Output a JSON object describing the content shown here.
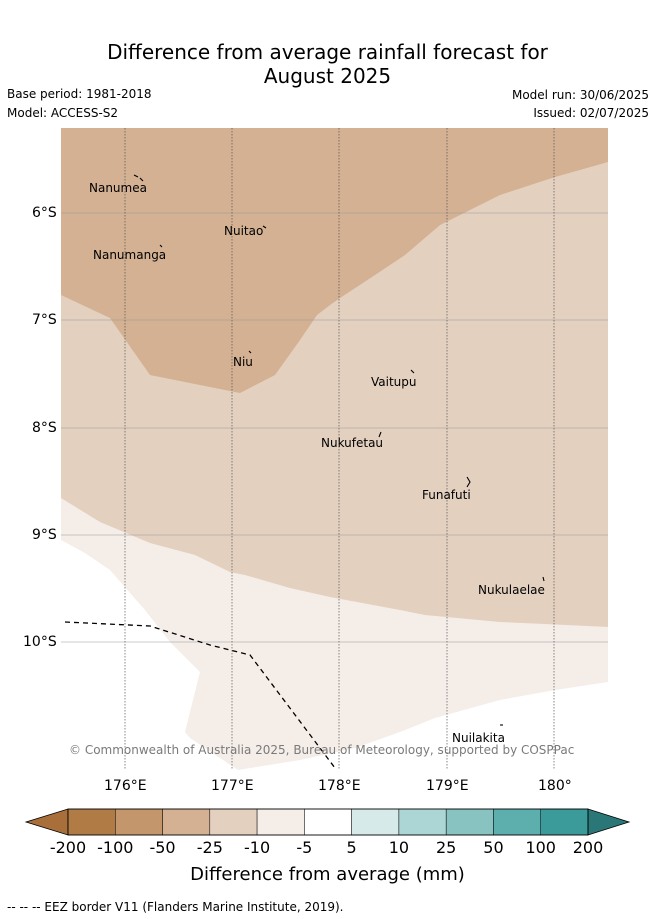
{
  "title_line1": "Difference from average rainfall forecast for",
  "title_line2": "August 2025",
  "base_period": "Base period: 1981-2018",
  "model": "Model: ACCESS-S2",
  "model_run": "Model run: 30/06/2025",
  "issued": "Issued: 02/07/2025",
  "copyright": "© Commonwealth of Australia 2025, Bureau of Meteorology, supported by COSPPac",
  "places": [
    "Nanumea",
    "Nuitao",
    "Nanumanga",
    "Niu",
    "Vaitupu",
    "Nukufetau",
    "Funafuti",
    "Nukulaelae",
    "Nuilakita"
  ],
  "lat_ticks": [
    "6°S",
    "7°S",
    "8°S",
    "9°S",
    "10°S"
  ],
  "lon_ticks": [
    "176°E",
    "177°E",
    "178°E",
    "179°E",
    "180°"
  ],
  "colorbar": {
    "labels": [
      "-200",
      "-100",
      "-50",
      "-25",
      "-10",
      "-5",
      "5",
      "10",
      "25",
      "50",
      "100",
      "200"
    ],
    "colors": [
      "#a86f3a",
      "#b07b44",
      "#c4966c",
      "#d3b192",
      "#e3d0bf",
      "#f5ede8",
      "#ffffff",
      "#d5eae9",
      "#acd6d5",
      "#88c2c1",
      "#5dafae",
      "#3a9b9a",
      "#2b7777"
    ],
    "title": "Difference from average (mm)"
  },
  "map_colors": {
    "dry_strong": "#d3b192",
    "dry_moderate": "#e3d0bf",
    "dry_slight": "#f5ede8",
    "neutral": "#ffffff"
  },
  "footer": "--  --  -- EEZ border V11 (Flanders Marine Institute, 2019)."
}
